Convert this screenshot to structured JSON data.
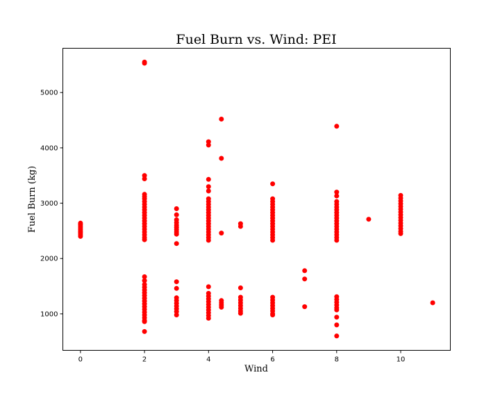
{
  "chart_data": {
    "type": "scatter",
    "title": "Fuel Burn vs. Wind: PEI",
    "xlabel": "Wind",
    "ylabel": "Fuel Burn (kg)",
    "xlim": [
      -0.55,
      11.55
    ],
    "ylim": [
      340,
      5800
    ],
    "xticks": [
      0,
      2,
      4,
      6,
      8,
      10
    ],
    "yticks": [
      1000,
      2000,
      3000,
      4000,
      5000
    ],
    "grid": false,
    "marker_color": "#ff0000",
    "series": [
      {
        "points": [
          [
            0,
            2400
          ],
          [
            0,
            2430
          ],
          [
            0,
            2460
          ],
          [
            0,
            2490
          ],
          [
            0,
            2520
          ],
          [
            0,
            2550
          ],
          [
            0,
            2580
          ],
          [
            0,
            2610
          ],
          [
            0,
            2640
          ],
          [
            2,
            5550
          ],
          [
            2,
            5530
          ],
          [
            2,
            3500
          ],
          [
            2,
            3440
          ],
          [
            2,
            3160
          ],
          [
            2,
            3120
          ],
          [
            2,
            3080
          ],
          [
            2,
            3030
          ],
          [
            2,
            2980
          ],
          [
            2,
            2930
          ],
          [
            2,
            2880
          ],
          [
            2,
            2830
          ],
          [
            2,
            2780
          ],
          [
            2,
            2730
          ],
          [
            2,
            2680
          ],
          [
            2,
            2630
          ],
          [
            2,
            2580
          ],
          [
            2,
            2530
          ],
          [
            2,
            2480
          ],
          [
            2,
            2430
          ],
          [
            2,
            2380
          ],
          [
            2,
            2340
          ],
          [
            2,
            1670
          ],
          [
            2,
            1600
          ],
          [
            2,
            1530
          ],
          [
            2,
            1480
          ],
          [
            2,
            1430
          ],
          [
            2,
            1380
          ],
          [
            2,
            1330
          ],
          [
            2,
            1280
          ],
          [
            2,
            1230
          ],
          [
            2,
            1180
          ],
          [
            2,
            1130
          ],
          [
            2,
            1080
          ],
          [
            2,
            1030
          ],
          [
            2,
            980
          ],
          [
            2,
            930
          ],
          [
            2,
            880
          ],
          [
            2,
            860
          ],
          [
            2,
            680
          ],
          [
            3,
            2900
          ],
          [
            3,
            2790
          ],
          [
            3,
            2700
          ],
          [
            3,
            2650
          ],
          [
            3,
            2600
          ],
          [
            3,
            2560
          ],
          [
            3,
            2520
          ],
          [
            3,
            2480
          ],
          [
            3,
            2440
          ],
          [
            3,
            2270
          ],
          [
            3,
            1580
          ],
          [
            3,
            1460
          ],
          [
            3,
            1290
          ],
          [
            3,
            1240
          ],
          [
            3,
            1190
          ],
          [
            3,
            1140
          ],
          [
            3,
            1090
          ],
          [
            3,
            1040
          ],
          [
            3,
            980
          ],
          [
            4,
            4110
          ],
          [
            4,
            4050
          ],
          [
            4,
            3430
          ],
          [
            4,
            3300
          ],
          [
            4,
            3220
          ],
          [
            4,
            3080
          ],
          [
            4,
            3030
          ],
          [
            4,
            2980
          ],
          [
            4,
            2930
          ],
          [
            4,
            2880
          ],
          [
            4,
            2830
          ],
          [
            4,
            2780
          ],
          [
            4,
            2730
          ],
          [
            4,
            2680
          ],
          [
            4,
            2630
          ],
          [
            4,
            2580
          ],
          [
            4,
            2530
          ],
          [
            4,
            2480
          ],
          [
            4,
            2430
          ],
          [
            4,
            2380
          ],
          [
            4,
            2330
          ],
          [
            4,
            1490
          ],
          [
            4,
            1370
          ],
          [
            4,
            1320
          ],
          [
            4,
            1270
          ],
          [
            4,
            1220
          ],
          [
            4,
            1170
          ],
          [
            4,
            1120
          ],
          [
            4,
            1070
          ],
          [
            4,
            1020
          ],
          [
            4,
            970
          ],
          [
            4,
            920
          ],
          [
            4.4,
            4520
          ],
          [
            4.4,
            3810
          ],
          [
            4.4,
            2460
          ],
          [
            4.4,
            1240
          ],
          [
            4.4,
            1200
          ],
          [
            4.4,
            1160
          ],
          [
            4.4,
            1120
          ],
          [
            5,
            2630
          ],
          [
            5,
            2580
          ],
          [
            5,
            1470
          ],
          [
            5,
            1300
          ],
          [
            5,
            1250
          ],
          [
            5,
            1200
          ],
          [
            5,
            1150
          ],
          [
            5,
            1100
          ],
          [
            5,
            1050
          ],
          [
            5,
            1010
          ],
          [
            6,
            3350
          ],
          [
            6,
            3080
          ],
          [
            6,
            3030
          ],
          [
            6,
            2980
          ],
          [
            6,
            2930
          ],
          [
            6,
            2880
          ],
          [
            6,
            2830
          ],
          [
            6,
            2780
          ],
          [
            6,
            2730
          ],
          [
            6,
            2680
          ],
          [
            6,
            2630
          ],
          [
            6,
            2580
          ],
          [
            6,
            2530
          ],
          [
            6,
            2480
          ],
          [
            6,
            2430
          ],
          [
            6,
            2380
          ],
          [
            6,
            2330
          ],
          [
            6,
            1300
          ],
          [
            6,
            1250
          ],
          [
            6,
            1200
          ],
          [
            6,
            1150
          ],
          [
            6,
            1100
          ],
          [
            6,
            1050
          ],
          [
            6,
            1000
          ],
          [
            6,
            980
          ],
          [
            7,
            1780
          ],
          [
            7,
            1630
          ],
          [
            7,
            1130
          ],
          [
            8,
            4390
          ],
          [
            8,
            3200
          ],
          [
            8,
            3130
          ],
          [
            8,
            3030
          ],
          [
            8,
            2980
          ],
          [
            8,
            2930
          ],
          [
            8,
            2880
          ],
          [
            8,
            2830
          ],
          [
            8,
            2780
          ],
          [
            8,
            2730
          ],
          [
            8,
            2680
          ],
          [
            8,
            2630
          ],
          [
            8,
            2580
          ],
          [
            8,
            2530
          ],
          [
            8,
            2480
          ],
          [
            8,
            2430
          ],
          [
            8,
            2380
          ],
          [
            8,
            2330
          ],
          [
            8,
            1310
          ],
          [
            8,
            1260
          ],
          [
            8,
            1210
          ],
          [
            8,
            1160
          ],
          [
            8,
            1110
          ],
          [
            8,
            1070
          ],
          [
            8,
            940
          ],
          [
            8,
            800
          ],
          [
            8,
            600
          ],
          [
            9,
            2710
          ],
          [
            10,
            3140
          ],
          [
            10,
            3090
          ],
          [
            10,
            3040
          ],
          [
            10,
            2990
          ],
          [
            10,
            2940
          ],
          [
            10,
            2890
          ],
          [
            10,
            2840
          ],
          [
            10,
            2790
          ],
          [
            10,
            2740
          ],
          [
            10,
            2690
          ],
          [
            10,
            2640
          ],
          [
            10,
            2590
          ],
          [
            10,
            2540
          ],
          [
            10,
            2490
          ],
          [
            10,
            2450
          ],
          [
            11,
            1200
          ]
        ]
      }
    ]
  }
}
